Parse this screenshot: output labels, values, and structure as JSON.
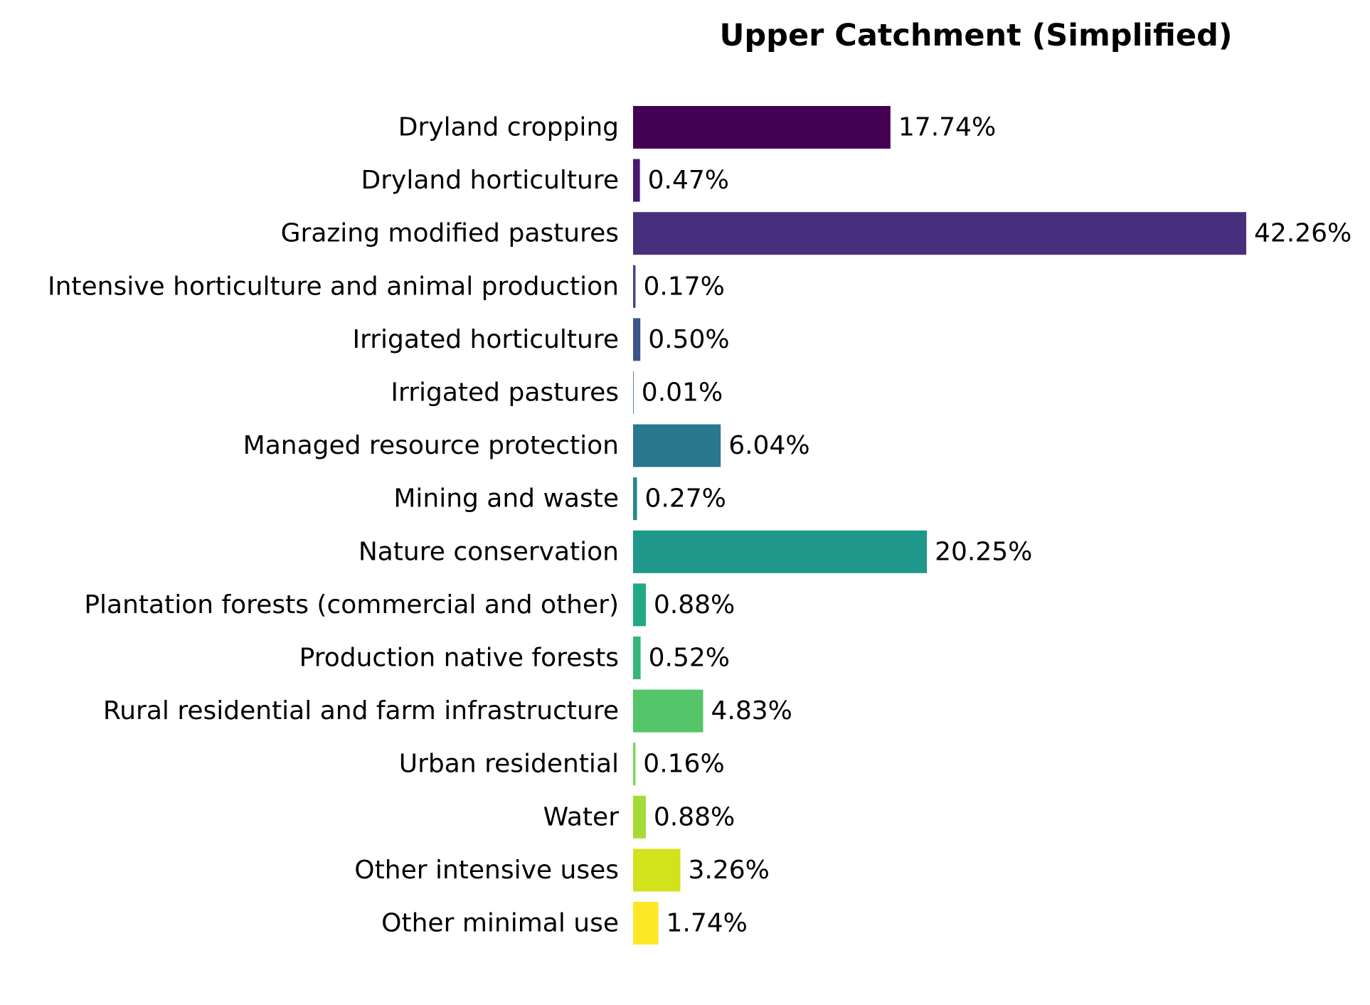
{
  "chart_data": {
    "type": "bar",
    "orientation": "horizontal",
    "title": "Upper Catchment (Simplified)",
    "xlabel": "",
    "ylabel": "",
    "xlim": [
      0,
      42.26
    ],
    "grid": false,
    "legend": "none",
    "value_format": "percent_2dp",
    "categories": [
      "Dryland cropping",
      "Dryland horticulture",
      "Grazing modified pastures",
      "Intensive horticulture and animal production",
      "Irrigated horticulture",
      "Irrigated pastures",
      "Managed resource protection",
      "Mining and waste",
      "Nature conservation",
      "Plantation forests (commercial and other)",
      "Production native forests",
      "Rural residential and farm infrastructure",
      "Urban residential",
      "Water",
      "Other intensive uses",
      "Other minimal use"
    ],
    "values": [
      17.74,
      0.47,
      42.26,
      0.17,
      0.5,
      0.01,
      6.04,
      0.27,
      20.25,
      0.88,
      0.52,
      4.83,
      0.16,
      0.88,
      3.26,
      1.74
    ],
    "value_labels": [
      "17.74%",
      "0.47%",
      "42.26%",
      "0.17%",
      "0.50%",
      "0.01%",
      "6.04%",
      "0.27%",
      "20.25%",
      "0.88%",
      "0.52%",
      "4.83%",
      "0.16%",
      "0.88%",
      "3.26%",
      "1.74%"
    ],
    "colors": [
      "#440154",
      "#481a6c",
      "#472f7d",
      "#414487",
      "#39568c",
      "#31688e",
      "#2a788e",
      "#23888e",
      "#1f988b",
      "#22a884",
      "#35b779",
      "#54c568",
      "#7ad151",
      "#a5db36",
      "#d2e21b",
      "#fde725"
    ]
  }
}
